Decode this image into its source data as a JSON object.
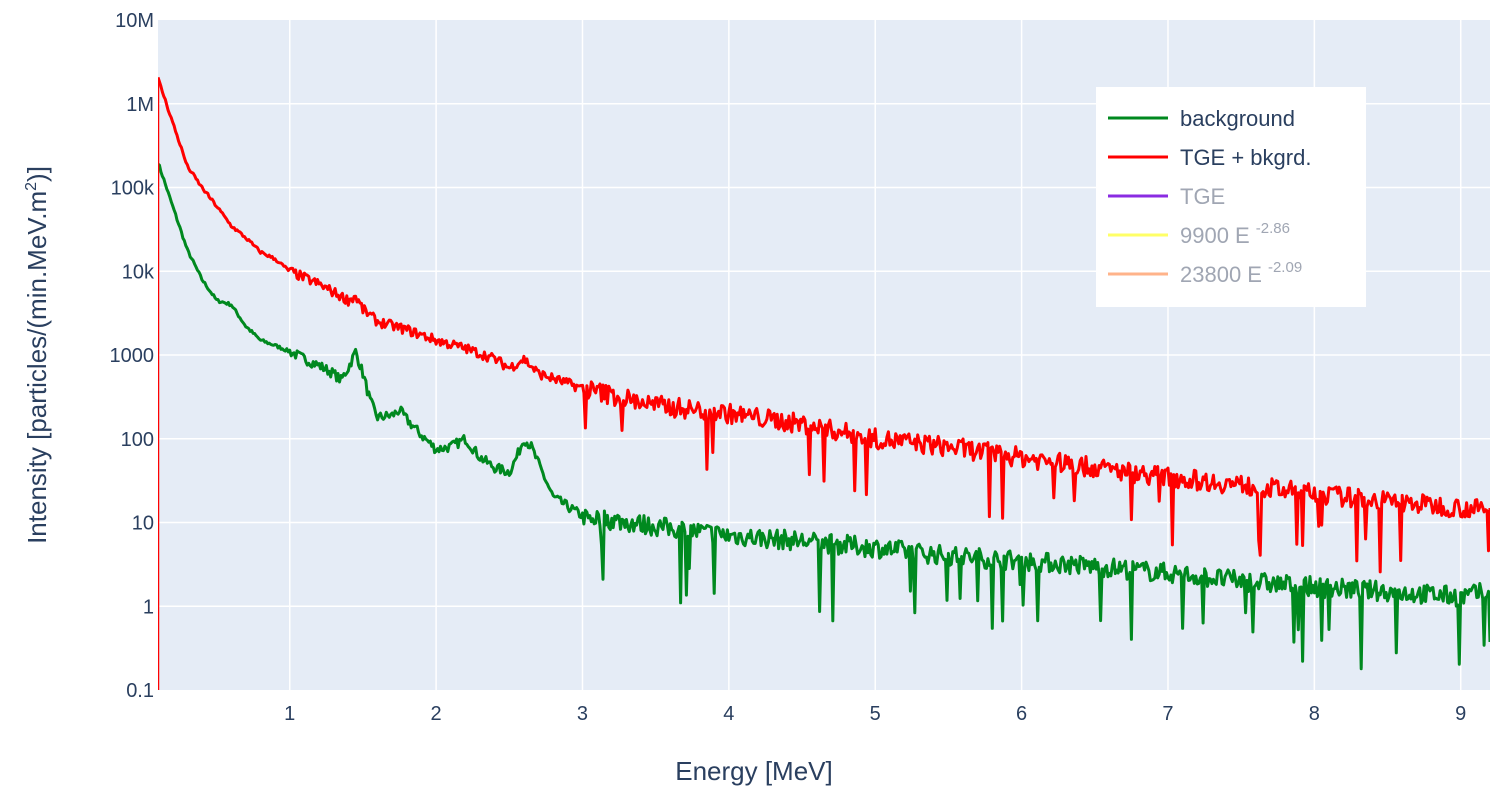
{
  "chart_data": {
    "type": "line",
    "xlabel": "Energy [MeV]",
    "ylabel": "Intensity [particles/(min.MeV.m²)]",
    "ylabel_parts": {
      "pre": "Intensity [particles/(min.MeV.m",
      "sup": "2",
      "post": ")]"
    },
    "x_scale": "linear",
    "y_scale": "log",
    "xlim": [
      0.1,
      9.2
    ],
    "ylim": [
      0.1,
      10000000
    ],
    "xticks": [
      1,
      2,
      3,
      4,
      5,
      6,
      7,
      8,
      9
    ],
    "xtick_labels": [
      "1",
      "2",
      "3",
      "4",
      "5",
      "6",
      "7",
      "8",
      "9"
    ],
    "yticks": [
      0.1,
      1,
      10,
      100,
      1000,
      10000,
      100000,
      1000000,
      10000000
    ],
    "ytick_labels": [
      "0.1",
      "1",
      "10",
      "100",
      "1000",
      "10k",
      "100k",
      "1M",
      "10M"
    ],
    "grid": true,
    "legend_position": "top-right",
    "colors": {
      "plot_bg": "#e5ecf6",
      "grid": "#ffffff",
      "text": "#2a3f5f",
      "legend_bg": "#ffffff"
    },
    "series": [
      {
        "name": "background",
        "color": "#00891f",
        "visible": true,
        "x": [
          0.1,
          0.2,
          0.3,
          0.4,
          0.5,
          0.6,
          0.7,
          0.8,
          0.9,
          1.0,
          1.1,
          1.2,
          1.3,
          1.35,
          1.4,
          1.45,
          1.5,
          1.55,
          1.6,
          1.7,
          1.75,
          1.8,
          1.9,
          2.0,
          2.1,
          2.2,
          2.3,
          2.4,
          2.5,
          2.55,
          2.6,
          2.65,
          2.7,
          2.8,
          3.0,
          3.5,
          4.0,
          4.5,
          5.0,
          5.5,
          6.0,
          6.5,
          7.0,
          7.5,
          8.0,
          8.5,
          9.0,
          9.2
        ],
        "y": [
          200000,
          60000,
          18000,
          8000,
          4500,
          4000,
          2200,
          1500,
          1300,
          1100,
          900,
          750,
          600,
          500,
          700,
          1100,
          600,
          280,
          180,
          190,
          220,
          170,
          110,
          75,
          80,
          100,
          60,
          45,
          40,
          60,
          100,
          80,
          50,
          20,
          12,
          9,
          7,
          6,
          5,
          4,
          3.5,
          3,
          2.5,
          2,
          1.7,
          1.5,
          1.3,
          1.5
        ]
      },
      {
        "name": "TGE + bkgrd.",
        "color": "#ff0000",
        "visible": true,
        "x": [
          0.1,
          0.2,
          0.3,
          0.4,
          0.5,
          0.6,
          0.7,
          0.8,
          0.9,
          1.0,
          1.2,
          1.4,
          1.45,
          1.5,
          1.6,
          1.8,
          2.0,
          2.2,
          2.4,
          2.5,
          2.6,
          2.7,
          3.0,
          3.5,
          4.0,
          4.5,
          5.0,
          5.5,
          6.0,
          6.5,
          7.0,
          7.5,
          8.0,
          8.5,
          9.0,
          9.2
        ],
        "y": [
          2000000,
          600000,
          180000,
          100000,
          60000,
          35000,
          25000,
          17000,
          14000,
          10000,
          7000,
          4500,
          5000,
          3500,
          2500,
          2000,
          1500,
          1200,
          900,
          700,
          900,
          600,
          400,
          250,
          200,
          150,
          100,
          80,
          60,
          45,
          35,
          28,
          22,
          18,
          15,
          14
        ]
      },
      {
        "name": "TGE",
        "color": "#8a2be2",
        "visible": false
      },
      {
        "name": "9900 E",
        "exponent": "-2.86",
        "color": "#ffff66",
        "visible": false
      },
      {
        "name": "23800 E",
        "exponent": "-2.09",
        "color": "#ffb38a",
        "visible": false
      }
    ]
  }
}
